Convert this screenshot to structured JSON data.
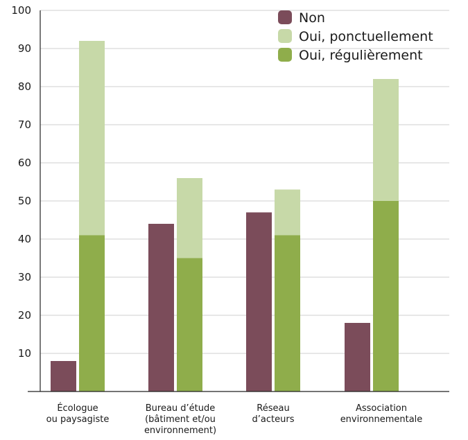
{
  "chart_data": {
    "type": "bar",
    "stacked_pairs": true,
    "categories": [
      [
        "Écologue",
        "ou paysagiste"
      ],
      [
        "Bureau d’étude",
        "(bâtiment et/ou",
        "environnement)"
      ],
      [
        "Réseau",
        "d’acteurs"
      ],
      [
        "Association",
        "environnementale"
      ]
    ],
    "series": [
      {
        "name": "Non",
        "values": [
          8,
          44,
          47,
          18
        ],
        "color": "#7b4c5a"
      },
      {
        "name": "Oui, ponctuellement",
        "values": [
          51,
          21,
          12,
          32
        ],
        "color": "#c7d9a8"
      },
      {
        "name": "Oui, régulièrement",
        "values": [
          41,
          35,
          41,
          50
        ],
        "color": "#8fad4b"
      }
    ],
    "yticks": [
      "10",
      "20",
      "30",
      "40",
      "50",
      "60",
      "70",
      "80",
      "90",
      "100"
    ],
    "ylim": [
      0,
      100
    ],
    "grid": true,
    "legend_position": "top-right"
  }
}
